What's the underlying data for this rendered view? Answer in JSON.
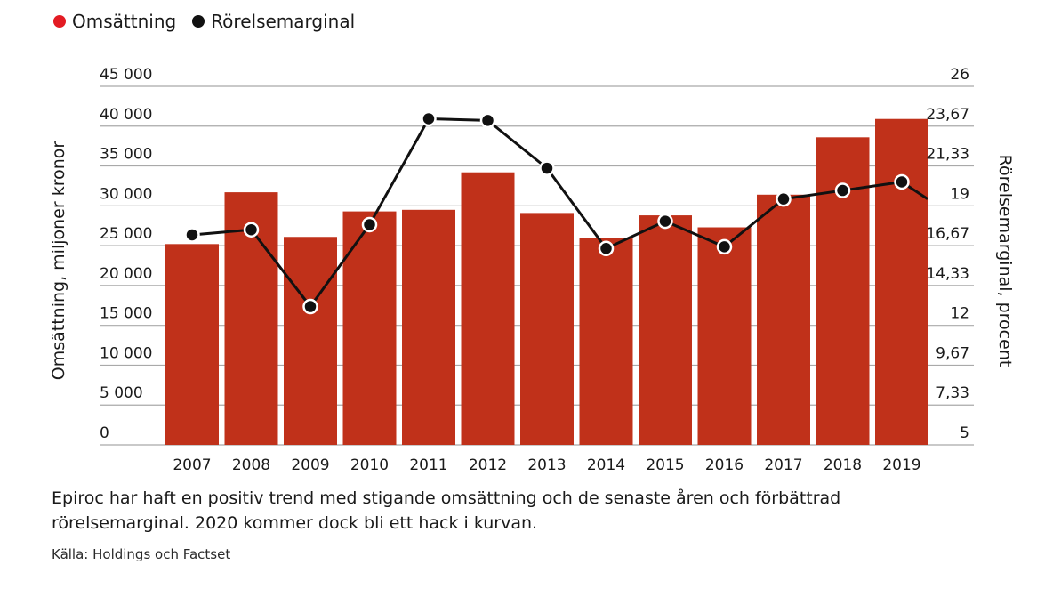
{
  "legend": {
    "revenue_label": "Omsättning",
    "margin_label": "Rörelsemarginal"
  },
  "caption": "Epiroc har haft en positiv trend med stigande omsättning och de senaste åren och förbättrad rörelsemarginal. 2020 kommer dock bli ett hack i kurvan.",
  "source": "Källa: Holdings och Factset",
  "colors": {
    "revenue": "#c0311a",
    "margin": "#111111",
    "grid": "#a9a9a9"
  },
  "chart_data": {
    "type": "bar",
    "categories": [
      "2007",
      "2008",
      "2009",
      "2010",
      "2011",
      "2012",
      "2013",
      "2014",
      "2015",
      "2016",
      "2017",
      "2018",
      "2019"
    ],
    "series": [
      {
        "name": "Omsättning",
        "type": "bar",
        "axis": "left",
        "values": [
          25200,
          31700,
          26100,
          29300,
          29500,
          34200,
          29100,
          26000,
          28800,
          27300,
          31400,
          38600,
          40900
        ]
      },
      {
        "name": "Rörelsemarginal",
        "type": "line",
        "axis": "right",
        "values": [
          17.3,
          17.6,
          13.1,
          17.9,
          24.1,
          24.0,
          21.2,
          16.5,
          18.1,
          16.6,
          19.4,
          19.9,
          20.4
        ],
        "trailing_value": 19.4
      }
    ],
    "ylabel": "Omsättning, miljoner kronor",
    "ylabel_right": "Rörelsemarginal, procent",
    "ylim": [
      0,
      45000
    ],
    "ylim_right": [
      5,
      26
    ],
    "yticks": [
      "0",
      "5 000",
      "10 000",
      "15 000",
      "20 000",
      "25 000",
      "30 000",
      "35 000",
      "40 000",
      "45 000"
    ],
    "yticks_right": [
      "5",
      "7,33",
      "9,67",
      "12",
      "14,33",
      "16,67",
      "19",
      "21,33",
      "23,67",
      "26"
    ],
    "grid": true,
    "legend": "top-left"
  }
}
